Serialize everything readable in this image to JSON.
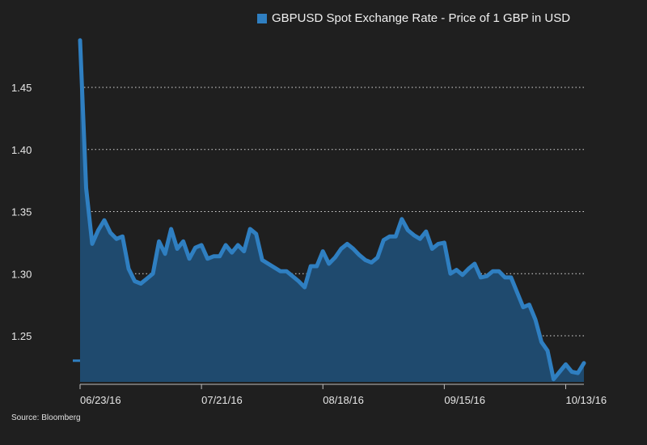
{
  "source": "Source: Bloomberg",
  "colors": {
    "line": "#2f7fc1",
    "area": "#1f4a6e",
    "background": "#1f1f1f",
    "grid": "#d8d8d8",
    "text": "#e6e6e6"
  },
  "chart_data": {
    "type": "area",
    "title": "",
    "xlabel": "",
    "ylabel": "",
    "ylim": [
      1.215,
      1.49
    ],
    "grid": true,
    "legend_position": "top",
    "y_ticks": [
      1.25,
      1.3,
      1.35,
      1.4,
      1.45
    ],
    "y_tick_labels": [
      "1.25",
      "1.30",
      "1.35",
      "1.40",
      "1.45"
    ],
    "x_tick_labels": [
      {
        "index": 0,
        "label": "06/23/16"
      },
      {
        "index": 20,
        "label": "07/21/16"
      },
      {
        "index": 40,
        "label": "08/18/16"
      },
      {
        "index": 60,
        "label": "09/15/16"
      },
      {
        "index": 80,
        "label": "10/13/16"
      }
    ],
    "series": [
      {
        "name": "GBPUSD Spot Exchange Rate - Price of 1 GBP in USD",
        "values": [
          1.488,
          1.369,
          1.324,
          1.335,
          1.343,
          1.333,
          1.328,
          1.33,
          1.304,
          1.294,
          1.292,
          1.296,
          1.3,
          1.326,
          1.316,
          1.336,
          1.32,
          1.326,
          1.312,
          1.321,
          1.323,
          1.312,
          1.314,
          1.314,
          1.323,
          1.317,
          1.323,
          1.318,
          1.336,
          1.332,
          1.311,
          1.308,
          1.305,
          1.302,
          1.302,
          1.298,
          1.294,
          1.289,
          1.306,
          1.306,
          1.318,
          1.308,
          1.313,
          1.32,
          1.324,
          1.32,
          1.315,
          1.311,
          1.309,
          1.313,
          1.327,
          1.33,
          1.33,
          1.344,
          1.335,
          1.331,
          1.328,
          1.334,
          1.32,
          1.324,
          1.325,
          1.3,
          1.303,
          1.299,
          1.304,
          1.308,
          1.297,
          1.298,
          1.302,
          1.302,
          1.297,
          1.297,
          1.285,
          1.273,
          1.275,
          1.263,
          1.245,
          1.238,
          1.215,
          1.221,
          1.227,
          1.221,
          1.22,
          1.228
        ]
      }
    ]
  }
}
